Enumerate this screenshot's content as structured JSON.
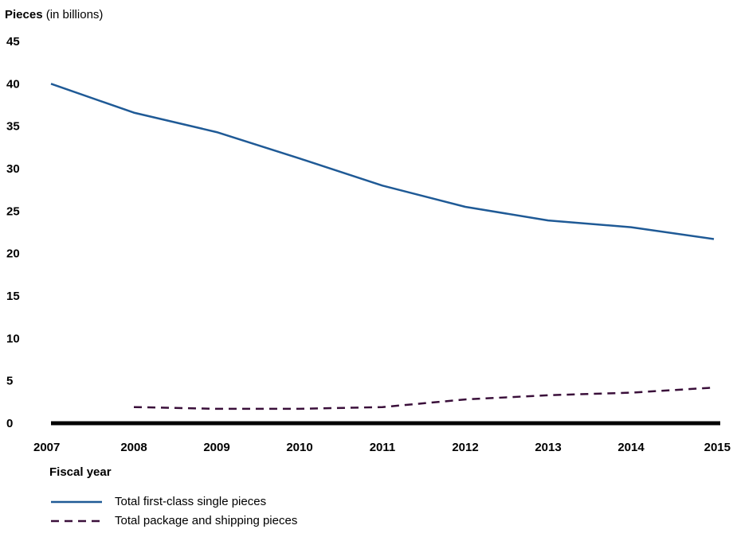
{
  "chart_data": {
    "type": "line",
    "ylabel_bold": "Pieces",
    "ylabel_rest": " (in billions)",
    "xlabel": "Fiscal year",
    "x": [
      "2007",
      "2008",
      "2009",
      "2010",
      "2011",
      "2012",
      "2013",
      "2014",
      "2015"
    ],
    "ylim": [
      0,
      45
    ],
    "yticks": [
      0,
      5,
      10,
      15,
      20,
      25,
      30,
      35,
      40,
      45
    ],
    "grid": false,
    "legend_position": "bottom-left",
    "series": [
      {
        "name": "Total first-class single pieces",
        "style": "solid",
        "color": "#1f5a96",
        "values": [
          40.0,
          36.6,
          34.3,
          31.2,
          28.0,
          25.5,
          23.9,
          23.1,
          21.7
        ]
      },
      {
        "name": "Total package and shipping pieces",
        "style": "dashed",
        "color": "#3a0f3a",
        "values": [
          null,
          1.9,
          1.7,
          1.7,
          1.9,
          2.8,
          3.3,
          3.6,
          4.2
        ]
      }
    ]
  }
}
